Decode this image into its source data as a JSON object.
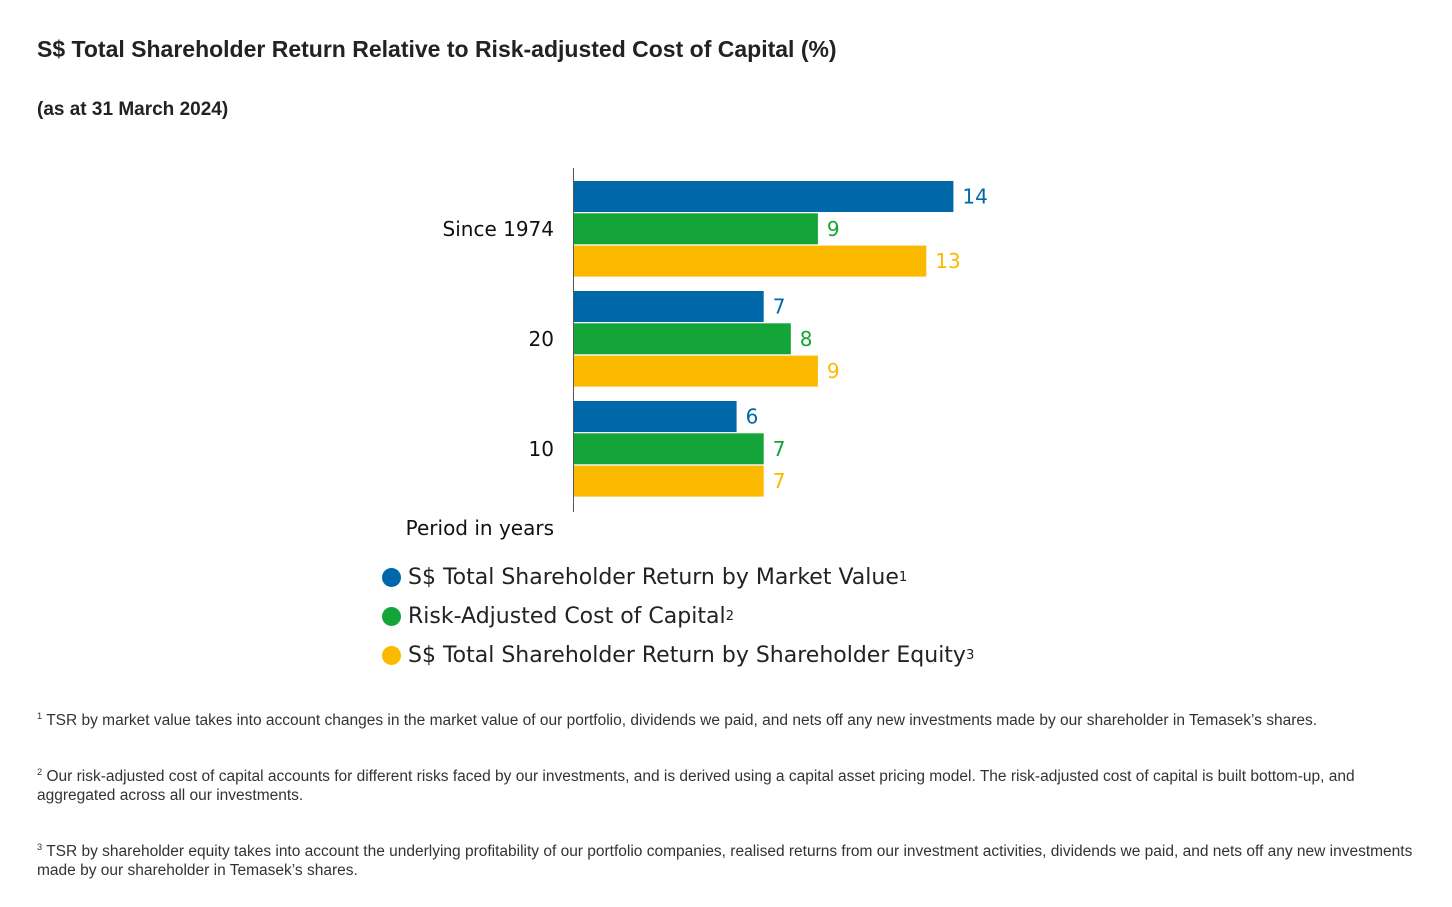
{
  "header": {
    "title": "S$ Total Shareholder Return Relative to Risk-adjusted Cost of Capital (%)",
    "subtitle": "(as at 31 March 2024)"
  },
  "chart_data": {
    "type": "bar",
    "orientation": "horizontal",
    "title": "S$ Total Shareholder Return Relative to Risk-adjusted Cost of Capital (%)",
    "subtitle": "(as at 31 March 2024)",
    "categories": [
      "Since 1974",
      "20",
      "10"
    ],
    "xlabel": "Period in years",
    "ylabel": "",
    "xlim": [
      0,
      14
    ],
    "grid": false,
    "legend_position": "bottom",
    "series": [
      {
        "name": "S$ Total Shareholder Return by Market Value",
        "footnote_ref": "1",
        "color": "#0068a8",
        "values": [
          14,
          7,
          6
        ]
      },
      {
        "name": "Risk-Adjusted Cost of Capital",
        "footnote_ref": "2",
        "color": "#13a538",
        "values": [
          9,
          8,
          7
        ]
      },
      {
        "name": "S$ Total Shareholder Return by Shareholder Equity",
        "footnote_ref": "3",
        "color": "#fbb900",
        "values": [
          13,
          9,
          7
        ]
      }
    ]
  },
  "footnotes": [
    {
      "ref": "1",
      "text": "TSR by market value takes into account changes in the market value of our portfolio, dividends we paid, and nets off any new investments made by our shareholder in Temasek’s shares."
    },
    {
      "ref": "2",
      "text": "Our risk-adjusted cost of capital accounts for different risks faced by our investments, and is derived using a capital asset pricing model. The risk-adjusted cost of capital is built bottom-up, and aggregated across all our investments."
    },
    {
      "ref": "3",
      "text": "TSR by shareholder equity takes into account the underlying profitability of our portfolio companies, realised returns from our investment activities, dividends we paid, and nets off any new investments made by our shareholder in Temasek’s shares."
    }
  ]
}
